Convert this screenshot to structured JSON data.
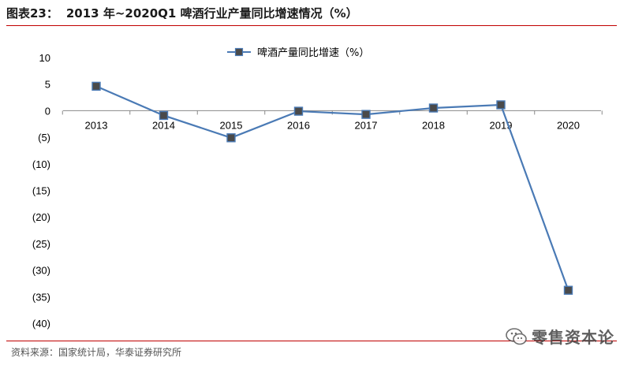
{
  "header": {
    "figure_label": "图表23：",
    "title": "2013 年~2020Q1 啤酒行业产量同比增速情况（%）"
  },
  "footer": {
    "source": "资料来源：国家统计局，华泰证券研究所"
  },
  "watermark": {
    "text": "零售资本论",
    "icon": "wechat-icon"
  },
  "colors": {
    "line": "#4a7ab5",
    "marker_face": "#4a4a4a",
    "marker_edge": "#4a7ab5",
    "rule": "#c00000"
  },
  "chart_data": {
    "type": "line",
    "title": "",
    "xlabel": "",
    "ylabel": "",
    "categories": [
      "2013",
      "2014",
      "2015",
      "2016",
      "2017",
      "2018",
      "2019",
      "2020"
    ],
    "series": [
      {
        "name": "啤酒产量同比增速（%）",
        "values": [
          4.6,
          -0.9,
          -5.1,
          -0.1,
          -0.7,
          0.5,
          1.1,
          -33.8
        ]
      }
    ],
    "ylim": [
      -40,
      10
    ],
    "yticks": [
      10,
      5,
      0,
      -5,
      -10,
      -15,
      -20,
      -25,
      -30,
      -35,
      -40
    ],
    "ytick_labels": [
      "10",
      "5",
      "0",
      "(5)",
      "(10)",
      "(15)",
      "(20)",
      "(25)",
      "(30)",
      "(35)",
      "(40)"
    ],
    "grid": false,
    "legend_position": "top-center"
  }
}
